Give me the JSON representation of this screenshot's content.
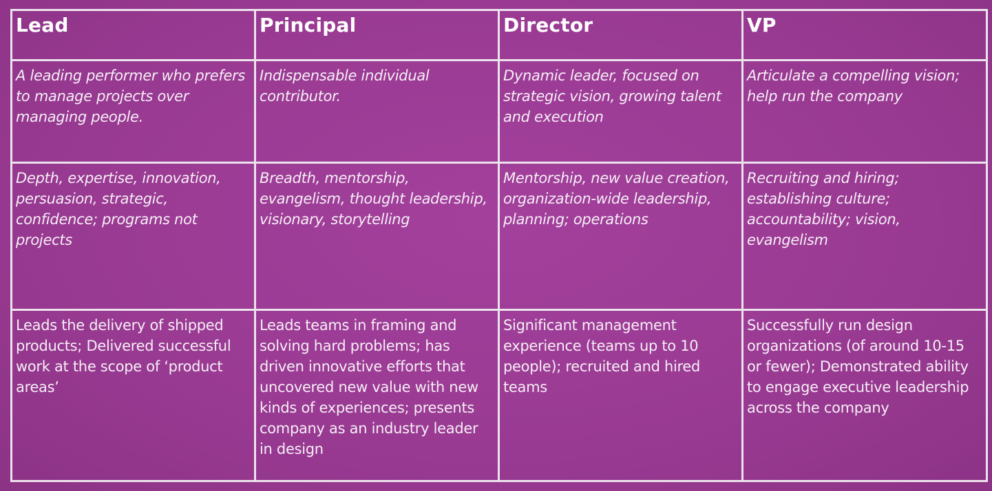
{
  "table": {
    "headers": [
      "Lead",
      "Principal",
      "Director",
      "VP"
    ],
    "descriptions": [
      "A leading performer who prefers to manage projects over managing people.",
      "Indispensable individual contributor.",
      "Dynamic leader, focused on strategic vision, growing talent and execution",
      "Articulate a compelling vision; help run the company"
    ],
    "skills": [
      "Depth, expertise, innovation, persuasion, strategic, confidence; programs not projects",
      "Breadth, mentorship, evangelism, thought leadership, visionary, storytelling",
      "Mentorship, new value creation, organization-wide leadership, planning; operations",
      "Recruiting and hiring; establishing culture; accountability; vision, evangelism"
    ],
    "experience": [
      "Leads the delivery of shipped products; Delivered successful work at the scope of ‘product areas’",
      "Leads teams in framing and solving hard problems; has driven innovative efforts that uncovered new value with new kinds of experiences; presents company as an industry leader in design",
      "Significant management experience (teams up to 10 people); recruited and hired teams",
      "Successfully run design organizations (of around 10-15 or fewer); Demonstrated ability to engage executive leadership across the company"
    ]
  },
  "colors": {
    "background": "#9a3a93",
    "grid_lines": "#ece4ec",
    "text": "#ffffff"
  }
}
